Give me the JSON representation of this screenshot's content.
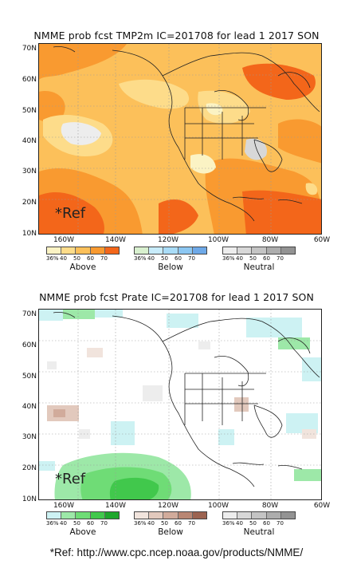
{
  "panels": [
    {
      "title": "NMME prob fcst TMP2m IC=201708 for lead 1 2017 SON",
      "ref": "*Ref",
      "legends": [
        {
          "name": "Above",
          "ticks": [
            "36%",
            "40",
            "50",
            "60",
            "70"
          ],
          "colors": [
            "#fbf3c4",
            "#fddc8a",
            "#fcc05a",
            "#f99a30",
            "#f3661a"
          ]
        },
        {
          "name": "Below",
          "ticks": [
            "36%",
            "40",
            "50",
            "60",
            "70"
          ],
          "colors": [
            "#d8f0cf",
            "#c8ecfb",
            "#a9dcf7",
            "#8cc7f2",
            "#6ea9e8"
          ]
        },
        {
          "name": "Neutral",
          "ticks": [
            "36%",
            "40",
            "50",
            "60",
            "70"
          ],
          "colors": [
            "#ededed",
            "#d8d8d8",
            "#c4c4c4",
            "#adadad",
            "#939393"
          ]
        }
      ]
    },
    {
      "title": "NMME prob fcst Prate IC=201708 for lead 1 2017 SON",
      "ref": "*Ref",
      "legends": [
        {
          "name": "Above",
          "ticks": [
            "36%",
            "40",
            "50",
            "60",
            "70"
          ],
          "colors": [
            "#cdf2f3",
            "#9de8a8",
            "#6fdc76",
            "#41c84c",
            "#1ea72c"
          ]
        },
        {
          "name": "Below",
          "ticks": [
            "36%",
            "40",
            "50",
            "60",
            "70"
          ],
          "colors": [
            "#f1e4dd",
            "#e2c9bd",
            "#d1ab9b",
            "#b98673",
            "#9c6350"
          ]
        },
        {
          "name": "Neutral",
          "ticks": [
            "36%",
            "40",
            "50",
            "60",
            "70"
          ],
          "colors": [
            "#ededed",
            "#d8d8d8",
            "#c4c4c4",
            "#adadad",
            "#939393"
          ]
        }
      ]
    }
  ],
  "axes": {
    "lat_labels": [
      "70N",
      "60N",
      "50N",
      "40N",
      "30N",
      "20N",
      "10N"
    ],
    "lon_labels": [
      "160W",
      "140W",
      "120W",
      "100W",
      "80W",
      "60W"
    ]
  },
  "footer": "*Ref: http://www.cpc.ncep.noaa.gov/products/NMME/"
}
